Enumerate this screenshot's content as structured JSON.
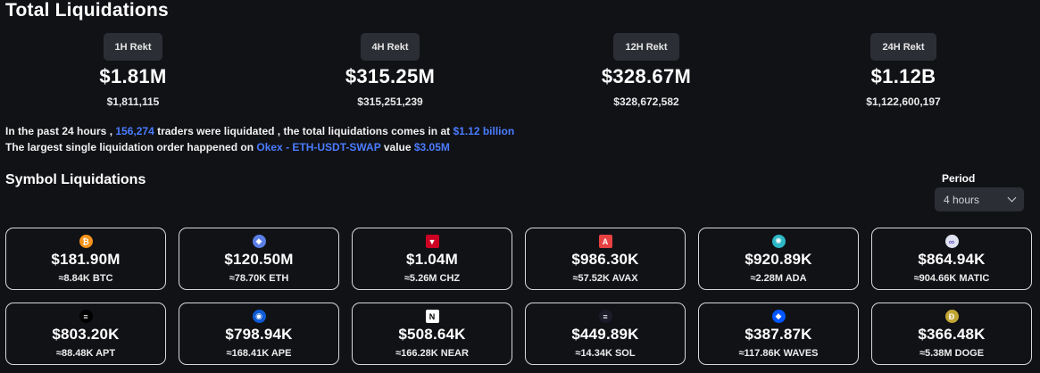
{
  "page_title": "Total Liquidations",
  "rekt": [
    {
      "label": "1H Rekt",
      "amount": "$1.81M",
      "exact": "$1,811,115"
    },
    {
      "label": "4H Rekt",
      "amount": "$315.25M",
      "exact": "$315,251,239"
    },
    {
      "label": "12H Rekt",
      "amount": "$328.67M",
      "exact": "$328,672,582"
    },
    {
      "label": "24H Rekt",
      "amount": "$1.12B",
      "exact": "$1,122,600,197"
    }
  ],
  "summary": {
    "line1_a": "In the past 24 hours , ",
    "traders": "156,274",
    "line1_b": " traders were liquidated , the total liquidations comes in at ",
    "total": "$1.12 billion",
    "line2_a": "The largest single liquidation order happened on ",
    "order": "Okex - ETH-USDT-SWAP",
    "line2_b": " value ",
    "value": "$3.05M"
  },
  "section_title": "Symbol Liquidations",
  "period": {
    "label": "Period",
    "selected": "4 hours"
  },
  "symbols": [
    {
      "icon": "bitcoin-icon",
      "glyph": "₿",
      "color": "#f7931a",
      "amount": "$181.90M",
      "sub": "≈8.84K BTC"
    },
    {
      "icon": "ethereum-icon",
      "glyph": "◆",
      "color": "#5b7fe6",
      "amount": "$120.50M",
      "sub": "≈78.70K ETH"
    },
    {
      "icon": "chiliz-icon",
      "glyph": "▼",
      "color": "#cd0124",
      "amount": "$1.04M",
      "sub": "≈5.26M CHZ"
    },
    {
      "icon": "avalanche-icon",
      "glyph": "A",
      "color": "#e84142",
      "amount": "$986.30K",
      "sub": "≈57.52K AVAX"
    },
    {
      "icon": "cardano-icon",
      "glyph": "✺",
      "color": "#2db8c6",
      "amount": "$920.89K",
      "sub": "≈2.28M ADA"
    },
    {
      "icon": "polygon-icon",
      "glyph": "∞",
      "color": "#dfe3f2",
      "amount": "$864.94K",
      "sub": "≈904.66K MATIC"
    },
    {
      "icon": "aptos-icon",
      "glyph": "≡",
      "color": "#000000",
      "amount": "$803.20K",
      "sub": "≈88.48K APT"
    },
    {
      "icon": "apecoin-icon",
      "glyph": "◉",
      "color": "#0f5bd6",
      "amount": "$798.94K",
      "sub": "≈168.41K APE"
    },
    {
      "icon": "near-icon",
      "glyph": "N",
      "color": "#ffffff",
      "amount": "$508.64K",
      "sub": "≈166.28K NEAR"
    },
    {
      "icon": "solana-icon",
      "glyph": "≡",
      "color": "#1b1b2a",
      "amount": "$449.89K",
      "sub": "≈14.34K SOL"
    },
    {
      "icon": "waves-icon",
      "glyph": "◆",
      "color": "#0055ff",
      "amount": "$387.87K",
      "sub": "≈117.86K WAVES"
    },
    {
      "icon": "dogecoin-icon",
      "glyph": "Đ",
      "color": "#c2a633",
      "amount": "$366.48K",
      "sub": "≈5.38M DOGE"
    }
  ]
}
